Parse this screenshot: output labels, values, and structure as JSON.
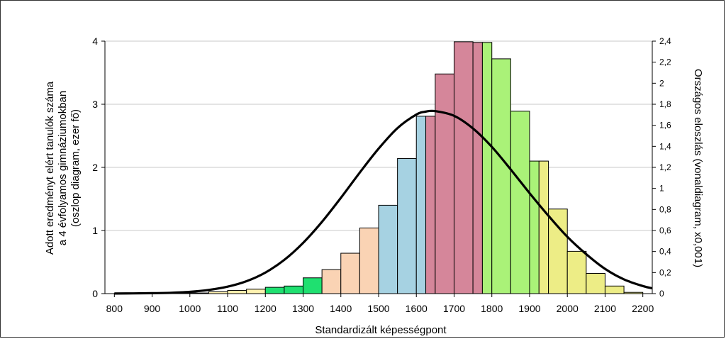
{
  "chart_data": {
    "type": "bar",
    "xlabel": "Standardizált képességpont",
    "ylabel_left": [
      "Adott eredményt elért tanulók száma",
      "a 4 évfolyamos gimnáziumokban",
      "(oszlop diagram, ezer fő)"
    ],
    "ylabel_right": "Országos eloszlás (vonaldiagram, x0,001)",
    "x_ticks": [
      "800",
      "900",
      "1000",
      "1100",
      "1200",
      "1300",
      "1400",
      "1500",
      "1600",
      "1700",
      "1800",
      "1900",
      "2000",
      "2100",
      "2200"
    ],
    "y_left_ticks": [
      "0",
      "1",
      "2",
      "3",
      "4"
    ],
    "y_right_ticks": [
      "0",
      "0,2",
      "0,4",
      "0,6",
      "0,8",
      "1",
      "1,2",
      "1,4",
      "1,6",
      "1,8",
      "2",
      "2,2",
      "2,4"
    ],
    "xlim": [
      775,
      2225
    ],
    "ylim_left": [
      0,
      4
    ],
    "ylim_right": [
      0,
      2.4
    ],
    "grid": true,
    "colors": {
      "pale_yellow": "#fff2b0",
      "green": "#1fe070",
      "peach": "#fad3b4",
      "blue": "#a6d2e2",
      "rose": "#d5869a",
      "light_green": "#aaf278",
      "yellow": "#eded86",
      "curve": "#000000"
    },
    "bars": [
      {
        "x0": 800,
        "x1": 850,
        "value": 0.005,
        "color": "pale_yellow"
      },
      {
        "x0": 850,
        "x1": 900,
        "value": 0.005,
        "color": "pale_yellow"
      },
      {
        "x0": 900,
        "x1": 950,
        "value": 0.005,
        "color": "pale_yellow"
      },
      {
        "x0": 950,
        "x1": 1000,
        "value": 0.01,
        "color": "pale_yellow"
      },
      {
        "x0": 1000,
        "x1": 1050,
        "value": 0.01,
        "color": "pale_yellow"
      },
      {
        "x0": 1050,
        "x1": 1100,
        "value": 0.03,
        "color": "pale_yellow"
      },
      {
        "x0": 1100,
        "x1": 1150,
        "value": 0.05,
        "color": "pale_yellow"
      },
      {
        "x0": 1150,
        "x1": 1200,
        "value": 0.07,
        "color": "pale_yellow"
      },
      {
        "x0": 1200,
        "x1": 1250,
        "value": 0.1,
        "color": "green"
      },
      {
        "x0": 1250,
        "x1": 1300,
        "value": 0.12,
        "color": "green"
      },
      {
        "x0": 1300,
        "x1": 1350,
        "value": 0.25,
        "color": "green"
      },
      {
        "x0": 1350,
        "x1": 1400,
        "value": 0.38,
        "color": "peach"
      },
      {
        "x0": 1400,
        "x1": 1450,
        "value": 0.64,
        "color": "peach"
      },
      {
        "x0": 1450,
        "x1": 1500,
        "value": 1.04,
        "color": "peach"
      },
      {
        "x0": 1500,
        "x1": 1550,
        "value": 1.4,
        "color": "blue"
      },
      {
        "x0": 1550,
        "x1": 1600,
        "value": 2.14,
        "color": "blue"
      },
      {
        "x0": 1600,
        "x1": 1625,
        "value": 2.81,
        "color": "blue"
      },
      {
        "x0": 1625,
        "x1": 1650,
        "value": 2.81,
        "color": "rose"
      },
      {
        "x0": 1650,
        "x1": 1700,
        "value": 3.48,
        "color": "rose"
      },
      {
        "x0": 1700,
        "x1": 1750,
        "value": 3.99,
        "color": "rose"
      },
      {
        "x0": 1750,
        "x1": 1775,
        "value": 3.98,
        "color": "rose"
      },
      {
        "x0": 1775,
        "x1": 1800,
        "value": 3.98,
        "color": "light_green"
      },
      {
        "x0": 1800,
        "x1": 1850,
        "value": 3.72,
        "color": "light_green"
      },
      {
        "x0": 1850,
        "x1": 1900,
        "value": 2.89,
        "color": "light_green"
      },
      {
        "x0": 1900,
        "x1": 1925,
        "value": 2.1,
        "color": "light_green"
      },
      {
        "x0": 1925,
        "x1": 1950,
        "value": 2.1,
        "color": "yellow"
      },
      {
        "x0": 1950,
        "x1": 2000,
        "value": 1.34,
        "color": "yellow"
      },
      {
        "x0": 2000,
        "x1": 2050,
        "value": 0.67,
        "color": "yellow"
      },
      {
        "x0": 2050,
        "x1": 2100,
        "value": 0.32,
        "color": "yellow"
      },
      {
        "x0": 2100,
        "x1": 2150,
        "value": 0.12,
        "color": "yellow"
      },
      {
        "x0": 2150,
        "x1": 2200,
        "value": 0.02,
        "color": "yellow"
      }
    ],
    "curve": {
      "series_axis": "right",
      "points": [
        [
          800,
          0.001
        ],
        [
          850,
          0.002
        ],
        [
          900,
          0.004
        ],
        [
          950,
          0.008
        ],
        [
          1000,
          0.017
        ],
        [
          1050,
          0.035
        ],
        [
          1100,
          0.066
        ],
        [
          1150,
          0.118
        ],
        [
          1200,
          0.2
        ],
        [
          1250,
          0.32
        ],
        [
          1300,
          0.482
        ],
        [
          1350,
          0.682
        ],
        [
          1400,
          0.91
        ],
        [
          1450,
          1.15
        ],
        [
          1500,
          1.378
        ],
        [
          1550,
          1.573
        ],
        [
          1600,
          1.702
        ],
        [
          1625,
          1.73
        ],
        [
          1650,
          1.735
        ],
        [
          1700,
          1.69
        ],
        [
          1750,
          1.57
        ],
        [
          1800,
          1.395
        ],
        [
          1850,
          1.18
        ],
        [
          1900,
          0.955
        ],
        [
          1950,
          0.74
        ],
        [
          2000,
          0.54
        ],
        [
          2050,
          0.375
        ],
        [
          2100,
          0.235
        ],
        [
          2150,
          0.135
        ],
        [
          2200,
          0.072
        ],
        [
          2225,
          0.05
        ]
      ]
    }
  }
}
